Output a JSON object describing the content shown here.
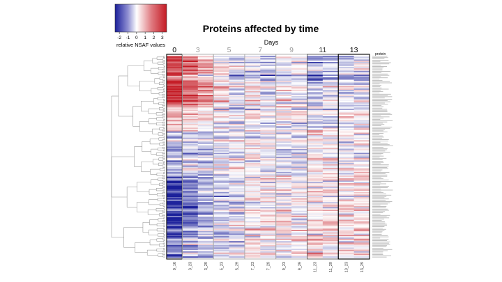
{
  "chart_data": {
    "type": "heatmap",
    "title": "Proteins affected by time",
    "xlabel": "Days",
    "row_label": "protein",
    "row_count": 160,
    "days": [
      "0",
      "3",
      "5",
      "7",
      "9",
      "11",
      "13"
    ],
    "columns": [
      "0_16",
      "3_23",
      "3_29",
      "5_23",
      "5_29",
      "7_23",
      "7_29",
      "9_23",
      "9_29",
      "11_23",
      "11_29",
      "13_23",
      "13_29"
    ],
    "column_day_groups": [
      0,
      1,
      1,
      2,
      2,
      3,
      3,
      4,
      4,
      5,
      5,
      6,
      6
    ],
    "colorbar": {
      "label": "relative NSAF values",
      "ticks": [
        "-2",
        "-1",
        "0",
        "1",
        "2",
        "3"
      ],
      "range": [
        -2.5,
        3.5
      ],
      "colors": {
        "low": "#1a1f9a",
        "mid": "#ffffff",
        "high": "#c41a24"
      }
    },
    "group_colors": [
      "#000000",
      "#aaaaaa",
      "#aaaaaa",
      "#aaaaaa",
      "#aaaaaa",
      "#555555",
      "#000000"
    ],
    "segment_profiles": [
      {
        "rows": [
          0,
          40
        ],
        "means": [
          2.1,
          1.6,
          1.0,
          0.3,
          -0.3,
          -0.1,
          -0.4,
          0.0,
          -0.1,
          -0.6,
          -0.5,
          -0.3,
          -0.4
        ]
      },
      {
        "rows": [
          40,
          60
        ],
        "means": [
          0.8,
          0.5,
          0.1,
          0.0,
          -0.1,
          0.1,
          0.0,
          0.2,
          0.1,
          -0.1,
          0.0,
          0.2,
          0.1
        ]
      },
      {
        "rows": [
          60,
          95
        ],
        "means": [
          -0.6,
          -0.3,
          -0.4,
          -0.2,
          0.0,
          0.1,
          0.0,
          -0.2,
          -0.1,
          0.3,
          0.2,
          0.0,
          0.1
        ]
      },
      {
        "rows": [
          95,
          145
        ],
        "means": [
          -1.9,
          -1.2,
          -0.8,
          -0.5,
          -0.3,
          0.0,
          0.1,
          0.1,
          0.2,
          0.4,
          0.3,
          0.2,
          0.4
        ]
      },
      {
        "rows": [
          145,
          160
        ],
        "means": [
          -1.3,
          -0.6,
          -0.4,
          -0.2,
          0.0,
          0.3,
          0.2,
          0.3,
          0.3,
          0.6,
          0.4,
          0.2,
          0.3
        ]
      }
    ]
  }
}
